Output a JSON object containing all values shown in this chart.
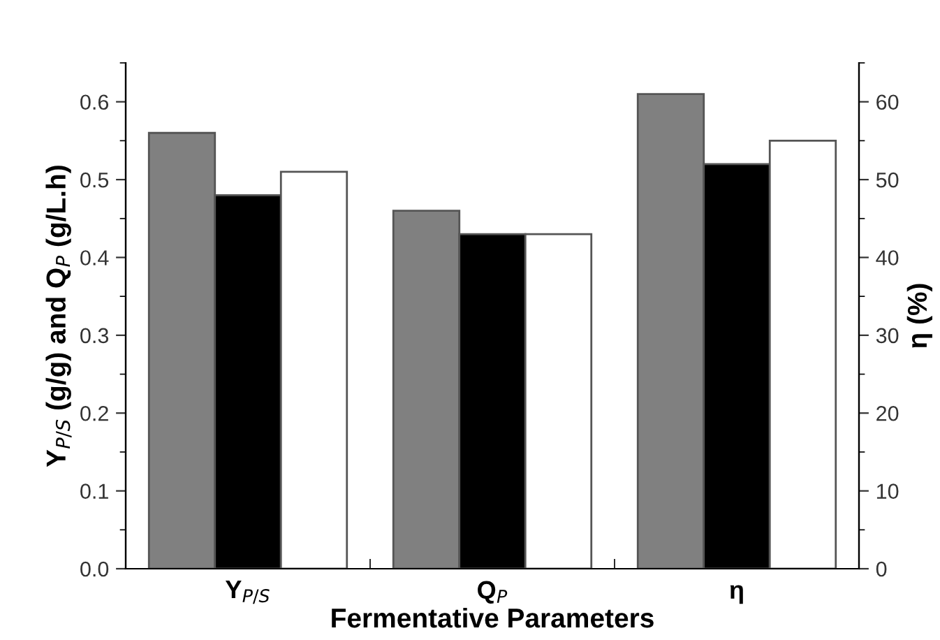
{
  "chart_data": {
    "type": "bar",
    "xlabel": "Fermentative Parameters",
    "ylabel": "Y$_{P/S}$ (g/g) and Q$_{P}$ (g/L.h)",
    "y2label": "η (%)",
    "categories": [
      "Y$_{P/S}$",
      "Q$_{P}$",
      "η"
    ],
    "series": [
      {
        "color": "#808080",
        "values": [
          0.56,
          0.46,
          null
        ]
      },
      {
        "color": "#000000",
        "values": [
          0.48,
          0.43,
          null
        ]
      },
      {
        "color": "#ffffff",
        "values": [
          0.51,
          0.43,
          null
        ]
      },
      {
        "color": "#808080",
        "values": [
          null,
          null,
          61
        ],
        "axis": "y2"
      },
      {
        "color": "#000000",
        "values": [
          null,
          null,
          52
        ],
        "axis": "y2"
      },
      {
        "color": "#ffffff",
        "values": [
          null,
          null,
          55
        ],
        "axis": "y2"
      }
    ],
    "ylim": [
      0,
      0.65
    ],
    "yticks": [
      {
        "value": 0,
        "label": "0.0"
      },
      0.1,
      0.2,
      0.3,
      0.4,
      0.5,
      0.6
    ],
    "y2lim": [
      0,
      65
    ],
    "y2ticks": [
      0,
      10,
      20,
      30,
      40,
      50,
      60
    ],
    "grid": false,
    "legend": false
  }
}
